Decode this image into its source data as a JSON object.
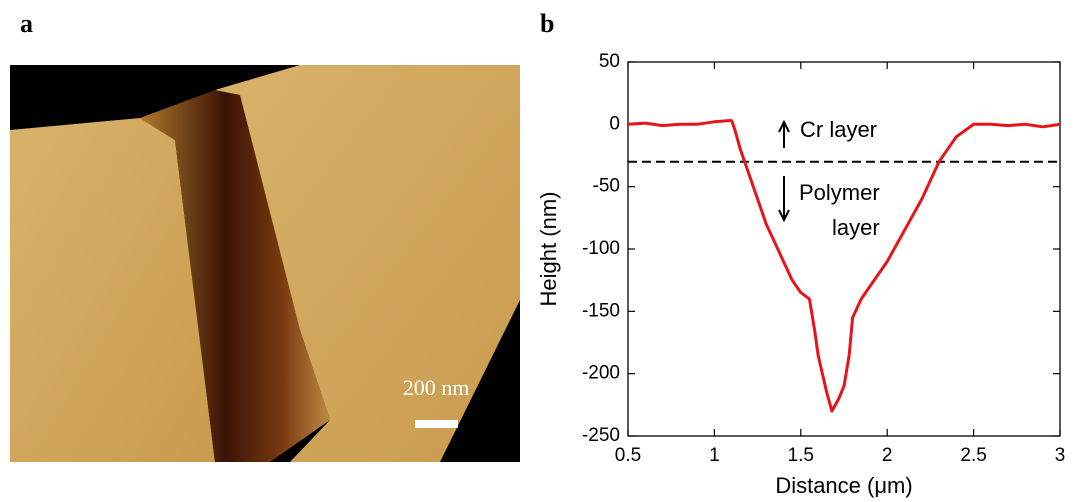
{
  "panel_labels": [
    "a",
    "b"
  ],
  "image": {
    "scale_bar": "200 nm"
  },
  "chart_data": {
    "type": "line",
    "x_label": "Distance (μm)",
    "y_label": "Height (nm)",
    "x": [
      0.5,
      0.6,
      0.7,
      0.8,
      0.9,
      1.0,
      1.08,
      1.1,
      1.12,
      1.15,
      1.2,
      1.25,
      1.3,
      1.35,
      1.4,
      1.45,
      1.5,
      1.55,
      1.58,
      1.6,
      1.65,
      1.68,
      1.72,
      1.75,
      1.78,
      1.8,
      1.85,
      1.9,
      2.0,
      2.1,
      2.2,
      2.3,
      2.4,
      2.5,
      2.6,
      2.7,
      2.8,
      2.9,
      3.0
    ],
    "values": [
      0,
      1,
      -1,
      0,
      0,
      2,
      3,
      3,
      -5,
      -20,
      -40,
      -60,
      -80,
      -95,
      -110,
      -125,
      -135,
      -140,
      -165,
      -185,
      -215,
      -230,
      -220,
      -210,
      -185,
      -155,
      -140,
      -130,
      -110,
      -85,
      -60,
      -30,
      -10,
      0,
      0,
      -1,
      0,
      -2,
      0
    ],
    "color": "#e8141b",
    "reference_line": -30,
    "annotations": [
      "Cr layer",
      "Polymer",
      "layer"
    ],
    "xlim": [
      0.5,
      3
    ],
    "xticks": [
      0.5,
      1,
      1.5,
      2,
      2.5,
      3
    ],
    "ylim": [
      -250,
      50
    ],
    "yticks": [
      50,
      0,
      -50,
      -100,
      -150,
      -200,
      -250
    ]
  }
}
